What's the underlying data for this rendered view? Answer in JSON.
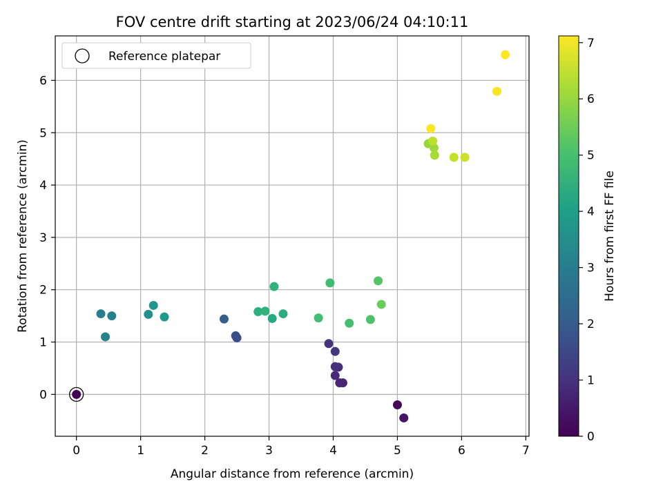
{
  "chart_data": {
    "type": "scatter",
    "title": "FOV centre drift starting at 2023/06/24 04:10:11",
    "xlabel": "Angular distance from reference (arcmin)",
    "ylabel": "Rotation from reference (arcmin)",
    "xlim": [
      -0.33,
      7.05
    ],
    "ylim": [
      -0.8,
      6.85
    ],
    "xticks": [
      0,
      1,
      2,
      3,
      4,
      5,
      6,
      7
    ],
    "yticks": [
      0,
      1,
      2,
      3,
      4,
      5,
      6
    ],
    "grid": true,
    "legend": {
      "position": "top-left",
      "entries": [
        "Reference platepar"
      ]
    },
    "reference_point": {
      "x": 0,
      "y": 0
    },
    "colorbar": {
      "label": "Hours from first FF file",
      "min": 0,
      "max": 7.12,
      "ticks": [
        0,
        1,
        2,
        3,
        4,
        5,
        6,
        7
      ],
      "colormap": "viridis"
    },
    "points": [
      {
        "x": 0.0,
        "y": 0.0,
        "hours": 0.0
      },
      {
        "x": 5.0,
        "y": -0.2,
        "hours": 0.1
      },
      {
        "x": 5.1,
        "y": -0.45,
        "hours": 0.4
      },
      {
        "x": 4.15,
        "y": 0.22,
        "hours": 0.7
      },
      {
        "x": 4.1,
        "y": 0.22,
        "hours": 0.75
      },
      {
        "x": 4.03,
        "y": 0.36,
        "hours": 0.85
      },
      {
        "x": 4.08,
        "y": 0.52,
        "hours": 0.9
      },
      {
        "x": 4.03,
        "y": 0.53,
        "hours": 0.95
      },
      {
        "x": 3.93,
        "y": 0.97,
        "hours": 1.05
      },
      {
        "x": 4.03,
        "y": 0.82,
        "hours": 1.15
      },
      {
        "x": 2.5,
        "y": 1.08,
        "hours": 1.6
      },
      {
        "x": 2.48,
        "y": 1.12,
        "hours": 1.7
      },
      {
        "x": 2.3,
        "y": 1.44,
        "hours": 2.1
      },
      {
        "x": 0.38,
        "y": 1.54,
        "hours": 3.0
      },
      {
        "x": 0.55,
        "y": 1.5,
        "hours": 3.1
      },
      {
        "x": 0.45,
        "y": 1.1,
        "hours": 3.2
      },
      {
        "x": 1.12,
        "y": 1.53,
        "hours": 3.6
      },
      {
        "x": 1.2,
        "y": 1.7,
        "hours": 3.7
      },
      {
        "x": 1.37,
        "y": 1.48,
        "hours": 3.8
      },
      {
        "x": 3.05,
        "y": 1.45,
        "hours": 4.3
      },
      {
        "x": 3.22,
        "y": 1.54,
        "hours": 4.4
      },
      {
        "x": 2.83,
        "y": 1.58,
        "hours": 4.5
      },
      {
        "x": 2.94,
        "y": 1.59,
        "hours": 4.55
      },
      {
        "x": 3.08,
        "y": 2.06,
        "hours": 4.6
      },
      {
        "x": 3.95,
        "y": 2.13,
        "hours": 4.9
      },
      {
        "x": 3.77,
        "y": 1.46,
        "hours": 4.95
      },
      {
        "x": 4.25,
        "y": 1.36,
        "hours": 5.0
      },
      {
        "x": 4.58,
        "y": 1.43,
        "hours": 5.1
      },
      {
        "x": 4.7,
        "y": 2.17,
        "hours": 5.2
      },
      {
        "x": 4.75,
        "y": 1.72,
        "hours": 5.5
      },
      {
        "x": 5.48,
        "y": 4.79,
        "hours": 6.0
      },
      {
        "x": 5.57,
        "y": 4.71,
        "hours": 6.1
      },
      {
        "x": 5.58,
        "y": 4.57,
        "hours": 6.2
      },
      {
        "x": 5.55,
        "y": 4.84,
        "hours": 6.4
      },
      {
        "x": 5.88,
        "y": 4.53,
        "hours": 6.5
      },
      {
        "x": 6.05,
        "y": 4.53,
        "hours": 6.6
      },
      {
        "x": 6.55,
        "y": 5.79,
        "hours": 7.05
      },
      {
        "x": 5.52,
        "y": 5.08,
        "hours": 7.1
      },
      {
        "x": 6.68,
        "y": 6.49,
        "hours": 7.12
      }
    ]
  }
}
